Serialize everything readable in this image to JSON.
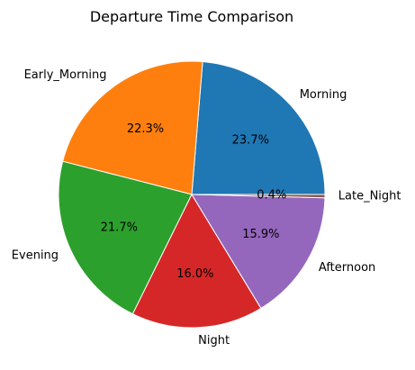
{
  "chart_data": {
    "type": "pie",
    "title": "Departure Time Comparison",
    "start_angle_deg": 0,
    "direction": "counterclockwise",
    "slices": [
      {
        "label": "Morning",
        "value": 23.7,
        "pct_text": "23.7%",
        "color": "#1f77b4"
      },
      {
        "label": "Early_Morning",
        "value": 22.3,
        "pct_text": "22.3%",
        "color": "#ff7f0e"
      },
      {
        "label": "Evening",
        "value": 21.7,
        "pct_text": "21.7%",
        "color": "#2ca02c"
      },
      {
        "label": "Night",
        "value": 16.0,
        "pct_text": "16.0%",
        "color": "#d62728"
      },
      {
        "label": "Afternoon",
        "value": 15.9,
        "pct_text": "15.9%",
        "color": "#9467bd"
      },
      {
        "label": "Late_Night",
        "value": 0.4,
        "pct_text": "0.4%",
        "color": "#8c564b"
      }
    ]
  }
}
